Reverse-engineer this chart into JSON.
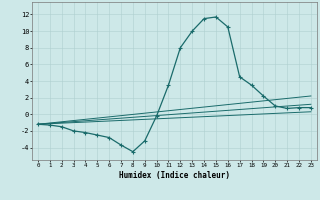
{
  "xlabel": "Humidex (Indice chaleur)",
  "xlim": [
    -0.5,
    23.5
  ],
  "ylim": [
    -5.5,
    13.5
  ],
  "xticks": [
    0,
    1,
    2,
    3,
    4,
    5,
    6,
    7,
    8,
    9,
    10,
    11,
    12,
    13,
    14,
    15,
    16,
    17,
    18,
    19,
    20,
    21,
    22,
    23
  ],
  "yticks": [
    -4,
    -2,
    0,
    2,
    4,
    6,
    8,
    10,
    12
  ],
  "color": "#1a6b6b",
  "bg_color": "#cde8e8",
  "grid_color": "#afd0d0",
  "line1_x": [
    0,
    1,
    2,
    3,
    4,
    5,
    6,
    7,
    8,
    9,
    10,
    11,
    12,
    13,
    14,
    15,
    16,
    17,
    18,
    19,
    20,
    21,
    22,
    23
  ],
  "line1_y": [
    -1.2,
    -1.3,
    -1.5,
    -2.0,
    -2.2,
    -2.5,
    -2.8,
    -3.7,
    -4.5,
    -3.2,
    -0.2,
    3.5,
    8.0,
    10.0,
    11.5,
    11.7,
    10.5,
    4.5,
    3.5,
    2.2,
    1.0,
    0.7,
    0.8,
    0.8
  ],
  "line2_x": [
    0,
    23
  ],
  "line2_y": [
    -1.2,
    2.2
  ],
  "line3_x": [
    0,
    23
  ],
  "line3_y": [
    -1.2,
    1.2
  ],
  "line4_x": [
    0,
    23
  ],
  "line4_y": [
    -1.2,
    0.3
  ]
}
